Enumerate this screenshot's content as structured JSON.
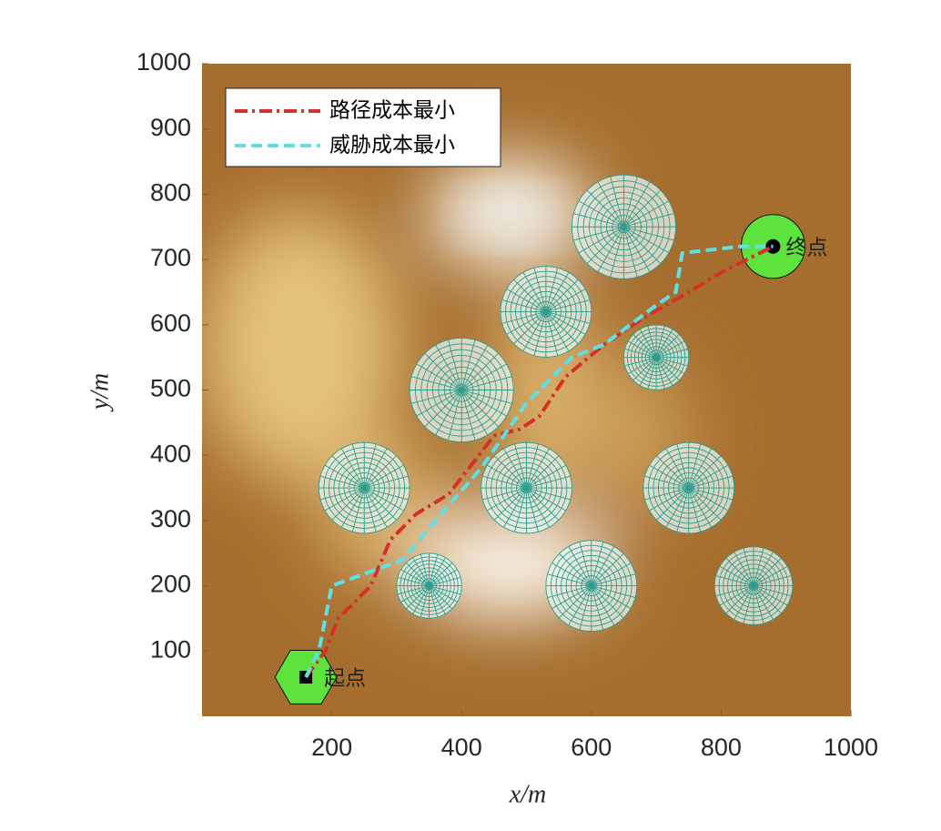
{
  "chart_data": {
    "type": "path",
    "xlabel": "x/m",
    "ylabel": "y/m",
    "xlim": [
      0,
      1000
    ],
    "ylim": [
      0,
      1000
    ],
    "xticks": [
      200,
      400,
      600,
      800,
      1000
    ],
    "yticks": [
      100,
      200,
      300,
      400,
      500,
      600,
      700,
      800,
      900,
      1000
    ],
    "legend": "upper left",
    "threat_color": "#2e9c8c",
    "start": {
      "x": 160,
      "y": 60,
      "label": "起点",
      "color": "#5ee33c"
    },
    "goal": {
      "x": 880,
      "y": 720,
      "label": "终点",
      "color": "#5ee33c"
    },
    "threats": [
      {
        "x": 650,
        "y": 750,
        "r": 80
      },
      {
        "x": 530,
        "y": 620,
        "r": 70
      },
      {
        "x": 400,
        "y": 500,
        "r": 80
      },
      {
        "x": 700,
        "y": 550,
        "r": 50
      },
      {
        "x": 250,
        "y": 350,
        "r": 70
      },
      {
        "x": 500,
        "y": 350,
        "r": 70
      },
      {
        "x": 750,
        "y": 350,
        "r": 70
      },
      {
        "x": 350,
        "y": 200,
        "r": 50
      },
      {
        "x": 600,
        "y": 200,
        "r": 70
      },
      {
        "x": 850,
        "y": 200,
        "r": 60
      }
    ],
    "series": [
      {
        "name": "路径成本最小",
        "color": "#d7302a",
        "x": [
          160,
          190,
          210,
          260,
          290,
          330,
          380,
          450,
          490,
          520,
          560,
          620,
          680,
          750,
          800,
          880
        ],
        "values": [
          60,
          100,
          150,
          200,
          270,
          310,
          340,
          430,
          440,
          460,
          520,
          570,
          610,
          650,
          680,
          720
        ]
      },
      {
        "name": "威胁成本最小",
        "color": "#5ee0e6",
        "x": [
          160,
          180,
          200,
          310,
          360,
          430,
          500,
          570,
          620,
          700,
          730,
          740,
          830,
          880
        ],
        "values": [
          60,
          100,
          200,
          240,
          300,
          380,
          480,
          550,
          570,
          630,
          650,
          710,
          720,
          720
        ]
      }
    ]
  }
}
